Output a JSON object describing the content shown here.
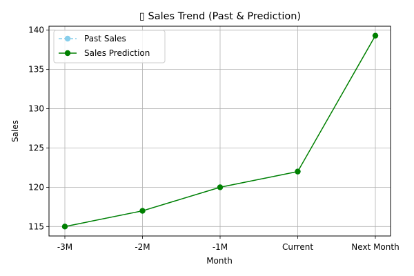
{
  "chart_data": {
    "type": "line",
    "title": "▯ Sales Trend (Past & Prediction)",
    "xlabel": "Month",
    "ylabel": "Sales",
    "categories": [
      "-3M",
      "-2M",
      "-1M",
      "Current",
      "Next Month"
    ],
    "ylim": [
      113.8,
      140.5
    ],
    "yticks": [
      115,
      120,
      125,
      130,
      135,
      140
    ],
    "grid": true,
    "legend_position": "top-left",
    "series": [
      {
        "name": "Past Sales",
        "color": "#87ceeb",
        "line_style": "dashed",
        "marker": "circle",
        "values": [
          115,
          117,
          120,
          122,
          null
        ]
      },
      {
        "name": "Sales Prediction",
        "color": "#008000",
        "line_style": "solid",
        "marker": "circle",
        "values": [
          115,
          117,
          120,
          122,
          139.3
        ]
      }
    ]
  }
}
